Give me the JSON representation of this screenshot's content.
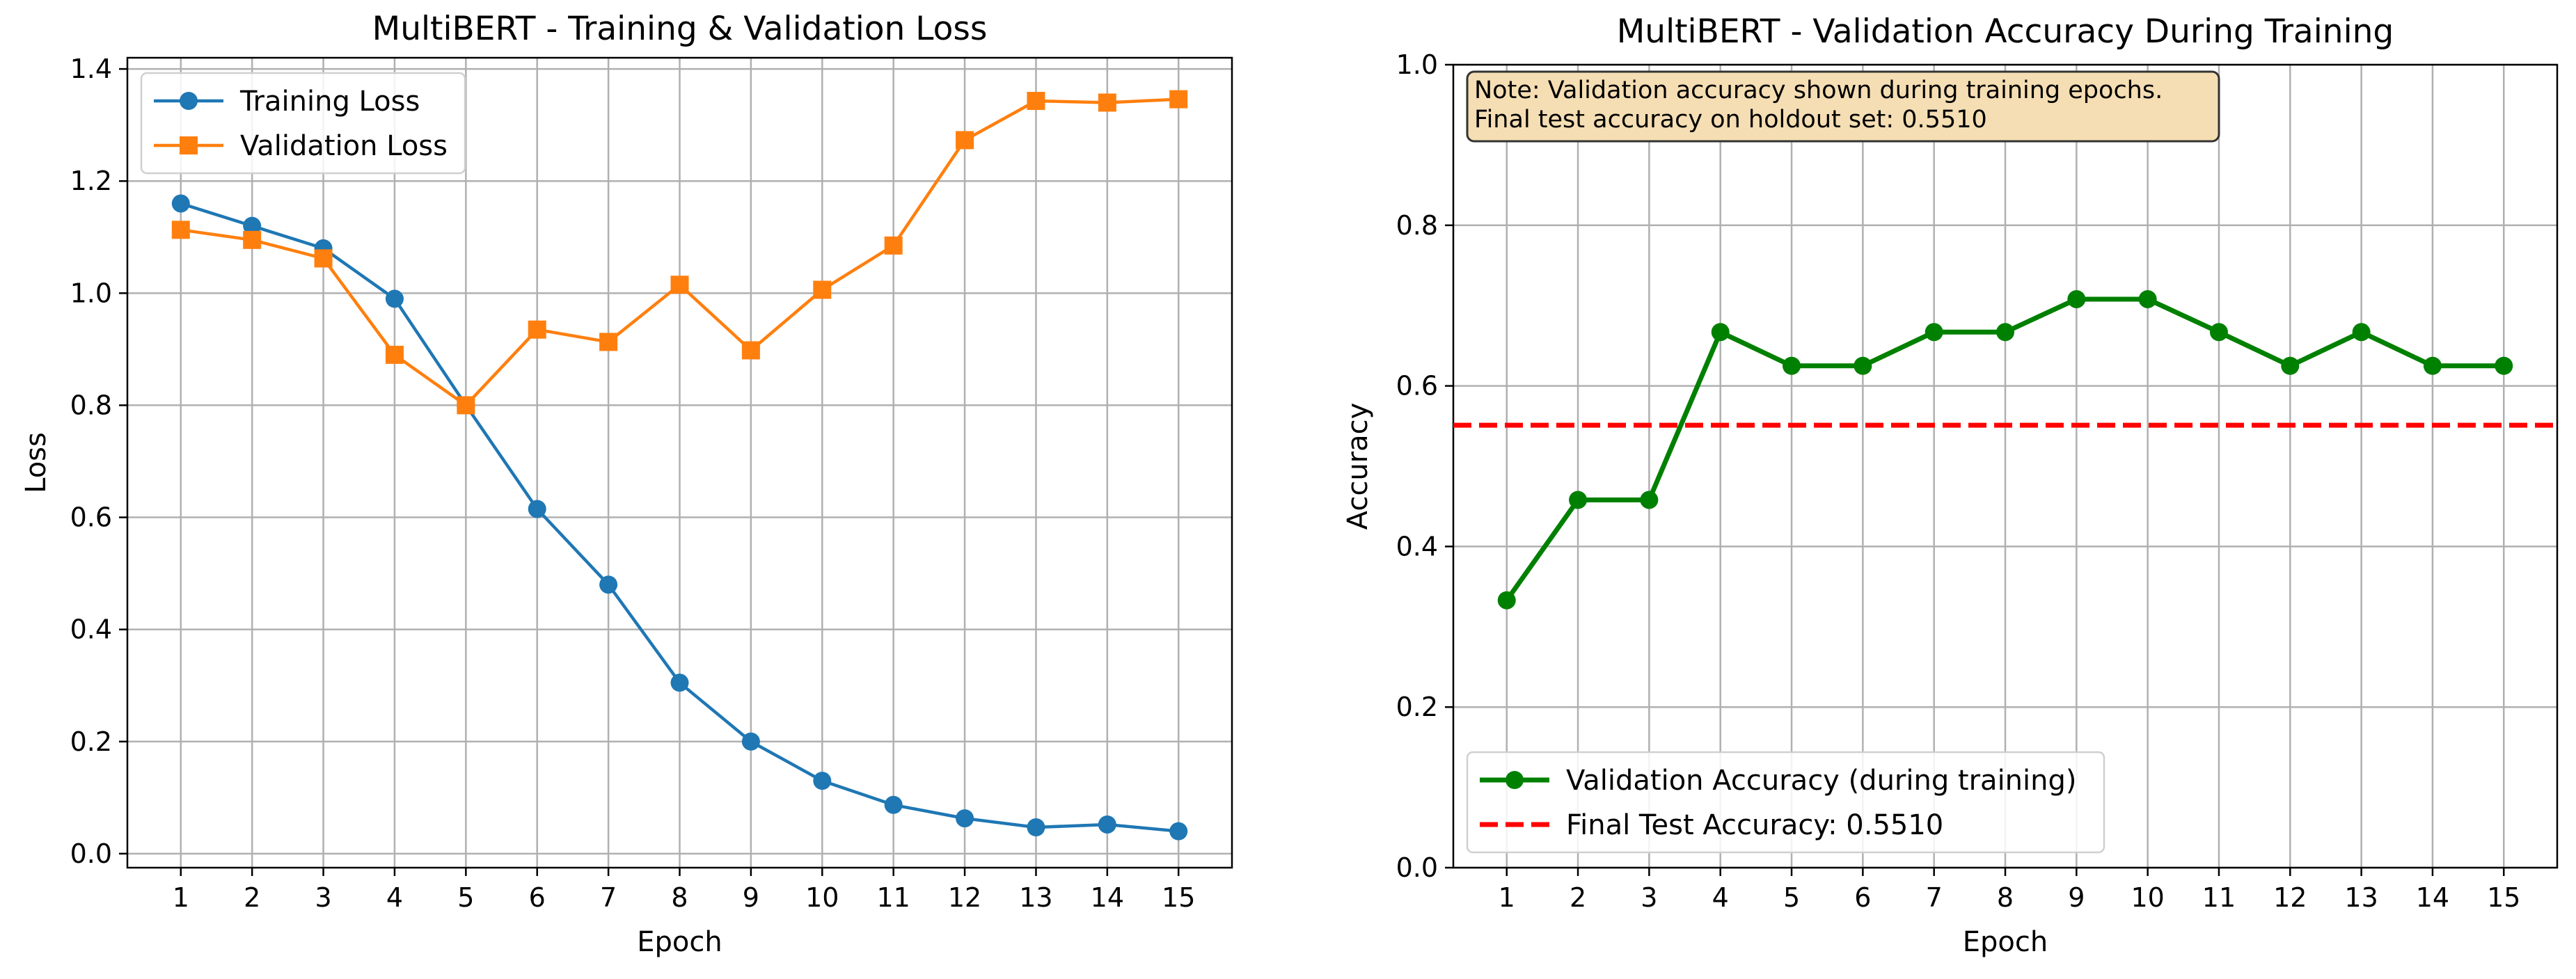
{
  "chart_data": [
    {
      "type": "line",
      "title": "MultiBERT - Training & Validation Loss",
      "xlabel": "Epoch",
      "ylabel": "Loss",
      "x": [
        1,
        2,
        3,
        4,
        5,
        6,
        7,
        8,
        9,
        10,
        11,
        12,
        13,
        14,
        15
      ],
      "xlim": [
        0.25,
        15.75
      ],
      "ylim": [
        -0.025,
        1.42
      ],
      "yticks": [
        0.0,
        0.2,
        0.4,
        0.6,
        0.8,
        1.0,
        1.2,
        1.4
      ],
      "ytick_format": 1,
      "grid": true,
      "legend_position": "upper-left",
      "series": [
        {
          "name": "Training Loss",
          "color": "#1f77b4",
          "marker": "circle",
          "values": [
            1.16,
            1.12,
            1.08,
            0.99,
            0.8,
            0.615,
            0.48,
            0.305,
            0.2,
            0.13,
            0.087,
            0.063,
            0.047,
            0.052,
            0.04
          ]
        },
        {
          "name": "Validation Loss",
          "color": "#ff7f0e",
          "marker": "square",
          "values": [
            1.113,
            1.095,
            1.062,
            0.89,
            0.8,
            0.935,
            0.913,
            1.015,
            0.898,
            1.006,
            1.085,
            1.273,
            1.343,
            1.34,
            1.346
          ]
        }
      ]
    },
    {
      "type": "line",
      "title": "MultiBERT - Validation Accuracy During Training",
      "xlabel": "Epoch",
      "ylabel": "Accuracy",
      "x": [
        1,
        2,
        3,
        4,
        5,
        6,
        7,
        8,
        9,
        10,
        11,
        12,
        13,
        14,
        15
      ],
      "xlim": [
        0.25,
        15.75
      ],
      "ylim": [
        0,
        1
      ],
      "yticks": [
        0.0,
        0.2,
        0.4,
        0.6,
        0.8,
        1.0
      ],
      "ytick_format": 1,
      "grid": true,
      "legend_position": "lower-left",
      "note": [
        "Note: Validation accuracy shown during training epochs.",
        "Final test accuracy on holdout set: 0.5510"
      ],
      "note_bg": "#f5deb3",
      "series": [
        {
          "name": "Validation Accuracy (during training)",
          "color": "#008000",
          "marker": "circle",
          "values": [
            0.333,
            0.458,
            0.458,
            0.667,
            0.625,
            0.625,
            0.667,
            0.667,
            0.708,
            0.708,
            0.667,
            0.625,
            0.667,
            0.625,
            0.625
          ]
        }
      ],
      "hlines": [
        {
          "name": "Final Test Accuracy: 0.5510",
          "color": "#ff0000",
          "style": "dashed",
          "value": 0.551
        }
      ]
    }
  ]
}
